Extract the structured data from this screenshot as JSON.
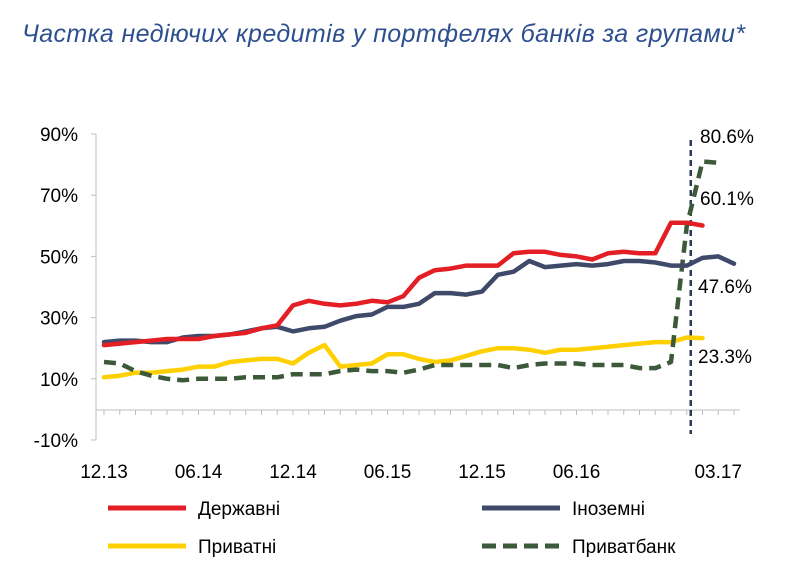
{
  "title": "Частка недіючих кредитів у портфелях банків за групами*",
  "chart_data": {
    "type": "line",
    "title": "Частка недіючих кредитів у портфелях банків за групами*",
    "ylim": [
      -10,
      90
    ],
    "y_ticks": [
      "90%",
      "70%",
      "50%",
      "30%",
      "10%",
      "-10%"
    ],
    "y_tick_values": [
      90,
      70,
      50,
      30,
      10,
      -10
    ],
    "x_tick_labels": [
      "12.13",
      "06.14",
      "12.14",
      "06.15",
      "12.15",
      "06.16",
      "03.17"
    ],
    "x_tick_index": [
      0,
      6,
      12,
      18,
      24,
      30,
      39
    ],
    "vline_index": 37,
    "grid": false,
    "legend_position": "bottom",
    "annotations": [
      {
        "text": "80.6%",
        "series": "Приватбанк",
        "index": 40,
        "value": 80.6
      },
      {
        "text": "60.1%",
        "series": "Державні",
        "index": 40,
        "value": 60.1
      },
      {
        "text": "47.6%",
        "series": "Іноземні",
        "index": 40,
        "value": 47.6
      },
      {
        "text": "23.3%",
        "series": "Приватні",
        "index": 40,
        "value": 23.3
      }
    ],
    "series": [
      {
        "name": "Державні",
        "color": "#e31e24",
        "style": "solid",
        "values": [
          21,
          21.5,
          22,
          22.5,
          23,
          23,
          23,
          24,
          24.5,
          25,
          26.5,
          27.5,
          34,
          35.5,
          34.5,
          34,
          34.5,
          35.5,
          35,
          37,
          43,
          45.5,
          46,
          47,
          47,
          47,
          51,
          51.5,
          51.5,
          50.5,
          50,
          49,
          51,
          51.5,
          51,
          51,
          61,
          61,
          60.1
        ]
      },
      {
        "name": "Іноземні",
        "color": "#3f4a6b",
        "style": "solid",
        "values": [
          22,
          22.5,
          22.5,
          22,
          22,
          23.5,
          24,
          24,
          24.5,
          25.5,
          26.5,
          27,
          25.5,
          26.5,
          27,
          29,
          30.5,
          31,
          33.5,
          33.5,
          34.5,
          38,
          38,
          37.5,
          38.5,
          44,
          45,
          48.5,
          46.5,
          47,
          47.5,
          47,
          47.5,
          48.5,
          48.5,
          48,
          47,
          47,
          49.5,
          50,
          47.6
        ]
      },
      {
        "name": "Приватні",
        "color": "#ffd000",
        "style": "solid",
        "values": [
          10.5,
          11,
          12,
          12,
          12.5,
          13,
          14,
          14,
          15.5,
          16,
          16.5,
          16.5,
          15,
          18.5,
          21,
          14,
          14.5,
          15,
          18,
          18,
          16.5,
          15.5,
          16,
          17.5,
          19,
          20,
          20,
          19.5,
          18.5,
          19.5,
          19.5,
          20,
          20.5,
          21,
          21.5,
          22,
          22,
          23.5,
          23.3
        ]
      },
      {
        "name": "Приватбанк",
        "color": "#3c5a3a",
        "style": "dashed",
        "values": [
          15.5,
          15,
          12.5,
          11,
          10,
          9.5,
          10,
          10,
          10,
          10.5,
          10.5,
          10.5,
          11.5,
          11.5,
          11.5,
          12.5,
          13,
          12.5,
          12.5,
          12,
          13,
          14.5,
          14.5,
          14.5,
          14.5,
          14.5,
          13.5,
          14.5,
          15,
          15,
          15,
          14.5,
          14.5,
          14.5,
          13.5,
          13.5,
          15.5,
          60,
          81,
          80.6
        ]
      }
    ]
  }
}
